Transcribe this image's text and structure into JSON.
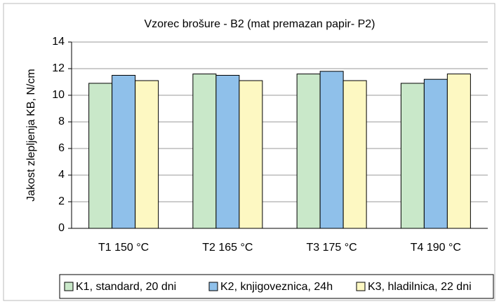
{
  "chart_data": {
    "type": "bar",
    "title": "Vzorec brošure - B2  (mat premazan papir- P2)",
    "y_label": "Jakost zlepljenja KB, N/cm",
    "categories": [
      "T1 150 °C",
      "T2 165 °C",
      "T3 175 °C",
      "T4 190 °C"
    ],
    "series": [
      {
        "name": "K1, standard, 20 dni",
        "color": "#c9e8c9",
        "values": [
          10.9,
          11.6,
          11.6,
          10.9
        ]
      },
      {
        "name": "K2, knjigoveznica, 24h",
        "color": "#8fc0ea",
        "values": [
          11.5,
          11.5,
          11.8,
          11.2
        ]
      },
      {
        "name": "K3, hladilnica, 22 dni",
        "color": "#fdf8c2",
        "values": [
          11.1,
          11.1,
          11.1,
          11.6
        ]
      }
    ],
    "ylim": [
      0,
      14
    ],
    "yticks": [
      0,
      2,
      4,
      6,
      8,
      10,
      12,
      14
    ],
    "grid": true,
    "legend": "bottom"
  }
}
